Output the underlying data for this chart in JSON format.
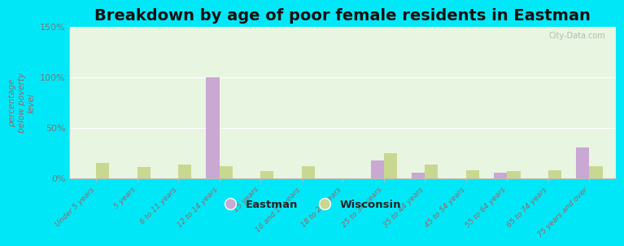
{
  "title": "Breakdown by age of poor female residents in Eastman",
  "ylabel": "percentage\nbelow poverty\nlevel",
  "categories": [
    "Under 5 years",
    "5 years",
    "6 to 11 years",
    "12 to 14 years",
    "15 years",
    "16 and 17 years",
    "18 to 24 years",
    "25 to 34 years",
    "35 to 44 years",
    "45 to 54 years",
    "55 to 64 years",
    "65 to 74 years",
    "75 years and over"
  ],
  "eastman": [
    0,
    0,
    0,
    100,
    0,
    0,
    0,
    17,
    5,
    0,
    5,
    0,
    30
  ],
  "wisconsin": [
    15,
    11,
    13,
    12,
    7,
    12,
    0,
    25,
    13,
    8,
    7,
    8,
    12
  ],
  "eastman_color": "#c9a8d4",
  "wisconsin_color": "#c8d890",
  "plot_bg_color": "#e8f5e0",
  "ylim": [
    0,
    150
  ],
  "yticks": [
    0,
    50,
    100,
    150
  ],
  "ytick_labels": [
    "0%",
    "50%",
    "100%",
    "150%"
  ],
  "bg_outer": "#00e8f8",
  "title_fontsize": 14,
  "axis_label_color": "#996666",
  "tick_label_color": "#996666",
  "watermark": "City-Data.com"
}
